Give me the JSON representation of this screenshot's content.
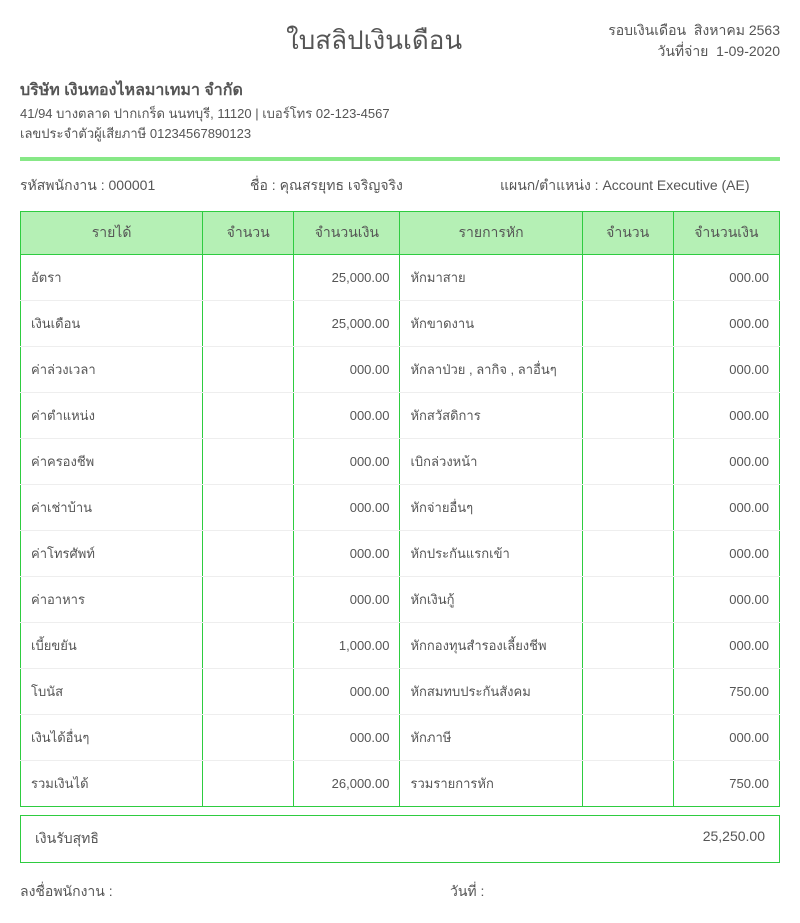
{
  "title": "ใบสลิปเงินเดือน",
  "period_label": "รอบเงินเดือน",
  "period_value": "สิงหาคม 2563",
  "paydate_label": "วันที่จ่าย",
  "paydate_value": "1-09-2020",
  "company": {
    "name": "บริษัท เงินทองไหลมาเทมา จำกัด",
    "address": "41/94 บางตลาด ปากเกร็ด นนทบุรี, 11120 | เบอร์โทร 02-123-4567",
    "taxid_label": "เลขประจำตัวผู้เสียภาษี",
    "taxid": "01234567890123"
  },
  "employee": {
    "code_label": "รหัสพนักงาน :",
    "code": "000001",
    "name_label": "ชื่อ :",
    "name": "คุณสรยุทธ เจริญจริง",
    "position_label": "แผนก/ตำแหน่ง :",
    "position": "Account Executive (AE)"
  },
  "table": {
    "headers": {
      "income": "รายได้",
      "qty1": "จำนวน",
      "amt1": "จำนวนเงิน",
      "deduct": "รายการหัก",
      "qty2": "จำนวน",
      "amt2": "จำนวนเงิน"
    },
    "header_bg": "#b5f0b5",
    "border_color": "#2ecc40",
    "row_border_color": "#eeeeee",
    "rows": [
      {
        "il": "อัตรา",
        "iq": "",
        "ia": "25,000.00",
        "dl": "หักมาสาย",
        "dq": "",
        "da": "000.00"
      },
      {
        "il": "เงินเดือน",
        "iq": "",
        "ia": "25,000.00",
        "dl": "หักขาดงาน",
        "dq": "",
        "da": "000.00"
      },
      {
        "il": "ค่าล่วงเวลา",
        "iq": "",
        "ia": "000.00",
        "dl": "หักลาป่วย , ลากิจ , ลาอื่นๆ",
        "dq": "",
        "da": "000.00"
      },
      {
        "il": "ค่าตำแหน่ง",
        "iq": "",
        "ia": "000.00",
        "dl": "หักสวัสดิการ",
        "dq": "",
        "da": "000.00"
      },
      {
        "il": "ค่าครองชีพ",
        "iq": "",
        "ia": "000.00",
        "dl": "เบิกล่วงหน้า",
        "dq": "",
        "da": "000.00"
      },
      {
        "il": "ค่าเช่าบ้าน",
        "iq": "",
        "ia": "000.00",
        "dl": "หักจ่ายอื่นๆ",
        "dq": "",
        "da": "000.00"
      },
      {
        "il": "ค่าโทรศัพท์",
        "iq": "",
        "ia": "000.00",
        "dl": "หักประกันแรกเข้า",
        "dq": "",
        "da": "000.00"
      },
      {
        "il": "ค่าอาหาร",
        "iq": "",
        "ia": "000.00",
        "dl": "หักเงินกู้",
        "dq": "",
        "da": "000.00"
      },
      {
        "il": "เบี้ยขยัน",
        "iq": "",
        "ia": "1,000.00",
        "dl": "หักกองทุนสำรองเลี้ยงชีพ",
        "dq": "",
        "da": "000.00"
      },
      {
        "il": "โบนัส",
        "iq": "",
        "ia": "000.00",
        "dl": "หักสมทบประกันสังคม",
        "dq": "",
        "da": "750.00"
      },
      {
        "il": "เงินได้อื่นๆ",
        "iq": "",
        "ia": "000.00",
        "dl": "หักภาษี",
        "dq": "",
        "da": "000.00"
      },
      {
        "il": "รวมเงินได้",
        "iq": "",
        "ia": "26,000.00",
        "dl": "รวมรายการหัก",
        "dq": "",
        "da": "750.00"
      }
    ]
  },
  "net": {
    "label": "เงินรับสุทธิ",
    "value": "25,250.00"
  },
  "sign": {
    "emp_label": "ลงชื่อพนักงาน :",
    "date_label": "วันที่ :"
  },
  "bar_color": "#87e887"
}
